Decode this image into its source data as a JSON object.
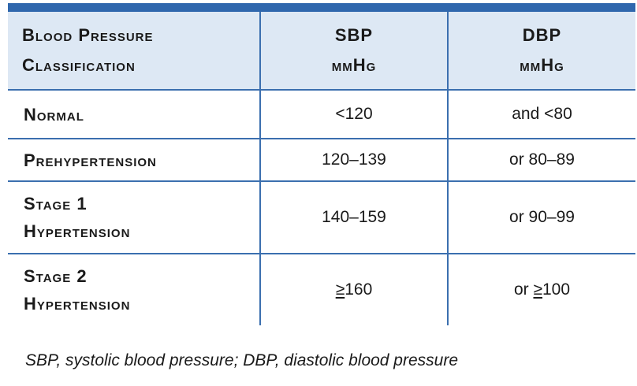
{
  "table": {
    "headers": {
      "classification": [
        "Blood Pressure",
        "Classification"
      ],
      "sbp": [
        "SBP",
        "mmHg"
      ],
      "dbp": [
        "DBP",
        "mmHg"
      ]
    },
    "rows": [
      {
        "label": [
          "Normal"
        ],
        "sbp": "<120",
        "dbp": "and <80"
      },
      {
        "label": [
          "Prehypertension"
        ],
        "sbp": "120–139",
        "dbp": "or 80–89"
      },
      {
        "label": [
          "Stage 1",
          "Hypertension"
        ],
        "sbp": "140–159",
        "dbp": "or 90–99"
      },
      {
        "label": [
          "Stage 2",
          "Hypertension"
        ],
        "sbp_symbol": "≥",
        "sbp_value": "160",
        "dbp_prefix": "or ",
        "dbp_symbol": "≥",
        "dbp_value": "100"
      }
    ]
  },
  "footnote": "SBP, systolic blood pressure; DBP, diastolic blood pressure",
  "colors": {
    "rule": "#2f67ad",
    "header_bg": "#dde8f4",
    "grid": "#3b6faf"
  }
}
